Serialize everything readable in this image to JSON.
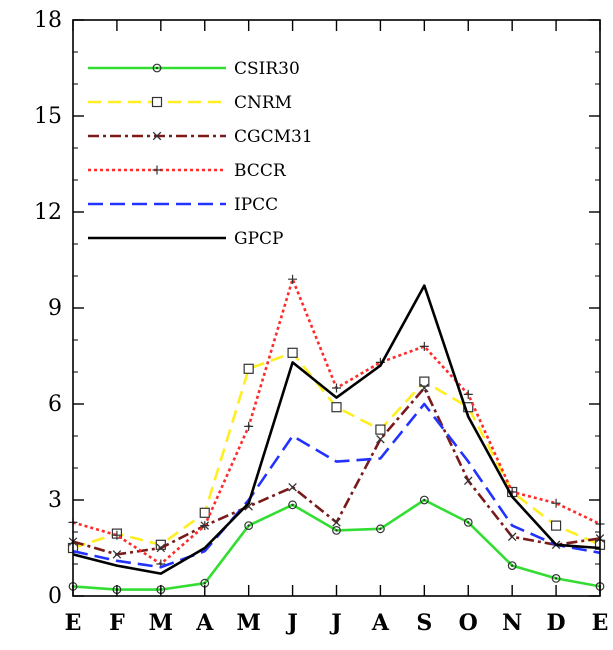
{
  "chart_data": {
    "type": "line",
    "title": "",
    "xlabel": "",
    "ylabel": "",
    "categories": [
      "E",
      "F",
      "M",
      "A",
      "M",
      "J",
      "J",
      "A",
      "S",
      "O",
      "N",
      "D",
      "E"
    ],
    "ylim": [
      0,
      18
    ],
    "yticks": [
      0,
      3,
      6,
      9,
      12,
      15,
      18
    ],
    "ytick_labels": [
      "0",
      "3",
      "6",
      "9",
      "12",
      "15",
      "18"
    ],
    "grid": false,
    "legend_position": "top-left",
    "series": [
      {
        "name": "CSIR30",
        "color": "#33dd33",
        "style": "solid",
        "marker": "circle-dot",
        "values": [
          0.3,
          0.2,
          0.2,
          0.4,
          2.2,
          2.85,
          2.05,
          2.1,
          3.0,
          2.3,
          0.95,
          0.55,
          0.3
        ]
      },
      {
        "name": "CNRM",
        "color": "#ffee22",
        "style": "dashed",
        "marker": "square",
        "values": [
          1.5,
          1.95,
          1.6,
          2.6,
          7.1,
          7.6,
          5.9,
          5.2,
          6.7,
          5.9,
          3.25,
          2.2,
          1.6
        ]
      },
      {
        "name": "CGCM31",
        "color": "#7a1a1a",
        "style": "dashdot",
        "marker": "x",
        "values": [
          1.7,
          1.3,
          1.5,
          2.2,
          2.8,
          3.4,
          2.3,
          4.9,
          6.5,
          3.6,
          1.85,
          1.6,
          1.8
        ]
      },
      {
        "name": "BCCR",
        "color": "#ff2a2a",
        "style": "dotted",
        "marker": "plus",
        "values": [
          2.3,
          1.9,
          1.0,
          2.2,
          5.3,
          9.9,
          6.5,
          7.3,
          7.8,
          6.3,
          3.25,
          2.9,
          2.25
        ]
      },
      {
        "name": "IPCC",
        "color": "#2233ff",
        "style": "longdash",
        "marker": "none",
        "values": [
          1.4,
          1.1,
          0.9,
          1.4,
          3.0,
          5.0,
          4.2,
          4.3,
          6.0,
          4.2,
          2.2,
          1.6,
          1.35
        ]
      },
      {
        "name": "GPCP",
        "color": "#000000",
        "style": "solid",
        "marker": "none",
        "values": [
          1.3,
          0.95,
          0.7,
          1.5,
          2.9,
          7.3,
          6.2,
          7.2,
          9.7,
          5.6,
          3.1,
          1.6,
          1.5
        ]
      }
    ]
  }
}
